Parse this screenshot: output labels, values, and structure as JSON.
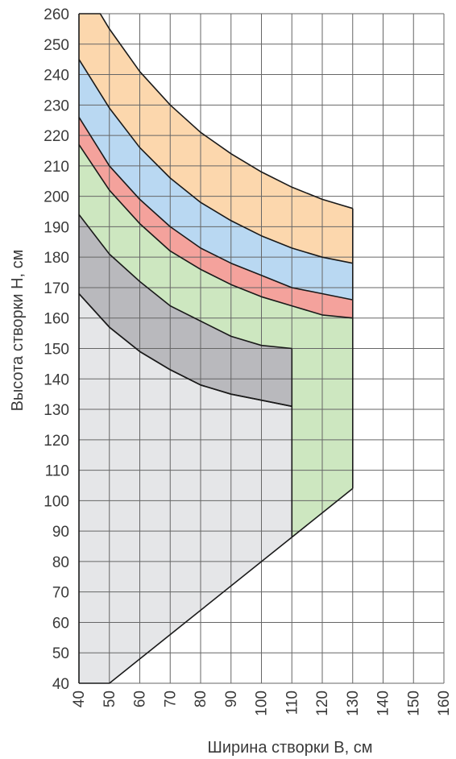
{
  "chart_data": {
    "type": "area",
    "title": "",
    "xlabel": "Ширина створки B, см",
    "ylabel": "Высота створки H, см",
    "xlim": [
      40,
      160
    ],
    "ylim": [
      40,
      260
    ],
    "x_ticks": [
      "40",
      "50",
      "60",
      "70",
      "80",
      "90",
      "100",
      "110",
      "120",
      "130",
      "140",
      "150",
      "160"
    ],
    "y_ticks": [
      "40",
      "50",
      "60",
      "70",
      "80",
      "90",
      "100",
      "110",
      "120",
      "130",
      "140",
      "150",
      "160",
      "170",
      "180",
      "190",
      "200",
      "210",
      "220",
      "230",
      "240",
      "250",
      "260"
    ],
    "grid": true,
    "colors": {
      "orange": "#fcd7ad",
      "blue": "#b9d8f2",
      "red": "#f4a29c",
      "green": "#cde7c0",
      "dark_gray": "#b9b9bd",
      "light_gray": "#e5e6e8",
      "grid": "#666666",
      "outline": "#1a1a1a"
    },
    "bottom_boundary": [
      [
        40,
        40
      ],
      [
        50,
        40
      ],
      [
        110,
        88
      ],
      [
        130,
        104
      ]
    ],
    "regions": [
      {
        "color": "orange",
        "upper": [
          [
            40,
            260
          ],
          [
            47,
            260
          ],
          [
            50,
            255
          ],
          [
            60,
            241
          ],
          [
            70,
            230
          ],
          [
            80,
            221
          ],
          [
            90,
            214
          ],
          [
            100,
            208
          ],
          [
            110,
            203
          ],
          [
            120,
            199
          ],
          [
            130,
            196
          ]
        ],
        "lower": [
          [
            40,
            245
          ],
          [
            50,
            229
          ],
          [
            60,
            216
          ],
          [
            70,
            206
          ],
          [
            80,
            198
          ],
          [
            90,
            192
          ],
          [
            100,
            187
          ],
          [
            110,
            183
          ],
          [
            120,
            180
          ],
          [
            130,
            178
          ]
        ]
      },
      {
        "color": "blue",
        "upper": [
          [
            40,
            245
          ],
          [
            50,
            229
          ],
          [
            60,
            216
          ],
          [
            70,
            206
          ],
          [
            80,
            198
          ],
          [
            90,
            192
          ],
          [
            100,
            187
          ],
          [
            110,
            183
          ],
          [
            120,
            180
          ],
          [
            130,
            178
          ]
        ],
        "lower": [
          [
            40,
            226
          ],
          [
            50,
            210
          ],
          [
            60,
            199
          ],
          [
            70,
            190
          ],
          [
            80,
            183
          ],
          [
            90,
            178
          ],
          [
            100,
            174
          ],
          [
            110,
            170
          ],
          [
            120,
            168
          ],
          [
            130,
            166
          ]
        ]
      },
      {
        "color": "red",
        "upper": [
          [
            40,
            226
          ],
          [
            50,
            210
          ],
          [
            60,
            199
          ],
          [
            70,
            190
          ],
          [
            80,
            183
          ],
          [
            90,
            178
          ],
          [
            100,
            174
          ],
          [
            110,
            170
          ],
          [
            120,
            168
          ],
          [
            130,
            166
          ]
        ],
        "lower": [
          [
            40,
            217
          ],
          [
            50,
            202
          ],
          [
            60,
            191
          ],
          [
            70,
            182
          ],
          [
            80,
            176
          ],
          [
            90,
            171
          ],
          [
            100,
            167
          ],
          [
            110,
            164
          ],
          [
            120,
            161
          ],
          [
            130,
            160
          ]
        ]
      },
      {
        "color": "green",
        "upper": [
          [
            40,
            217
          ],
          [
            50,
            202
          ],
          [
            60,
            191
          ],
          [
            70,
            182
          ],
          [
            80,
            176
          ],
          [
            90,
            171
          ],
          [
            100,
            167
          ],
          [
            110,
            164
          ],
          [
            120,
            161
          ],
          [
            130,
            160
          ]
        ],
        "lower": [
          [
            40,
            194
          ],
          [
            50,
            181
          ],
          [
            60,
            172
          ],
          [
            70,
            164
          ],
          [
            80,
            159
          ],
          [
            90,
            154
          ],
          [
            100,
            151
          ],
          [
            110,
            150
          ],
          [
            110,
            88
          ],
          [
            130,
            104
          ]
        ]
      },
      {
        "color": "dark_gray",
        "upper": [
          [
            40,
            194
          ],
          [
            50,
            181
          ],
          [
            60,
            172
          ],
          [
            70,
            164
          ],
          [
            80,
            159
          ],
          [
            90,
            154
          ],
          [
            100,
            151
          ],
          [
            110,
            150
          ]
        ],
        "lower": [
          [
            40,
            168
          ],
          [
            50,
            157
          ],
          [
            60,
            149
          ],
          [
            70,
            143
          ],
          [
            80,
            138
          ],
          [
            90,
            135
          ],
          [
            100,
            133
          ],
          [
            110,
            131
          ]
        ]
      },
      {
        "color": "light_gray",
        "upper": [
          [
            40,
            168
          ],
          [
            50,
            157
          ],
          [
            60,
            149
          ],
          [
            70,
            143
          ],
          [
            80,
            138
          ],
          [
            90,
            135
          ],
          [
            100,
            133
          ],
          [
            110,
            131
          ]
        ],
        "lower": [
          [
            40,
            40
          ],
          [
            50,
            40
          ],
          [
            110,
            88
          ]
        ]
      }
    ]
  }
}
